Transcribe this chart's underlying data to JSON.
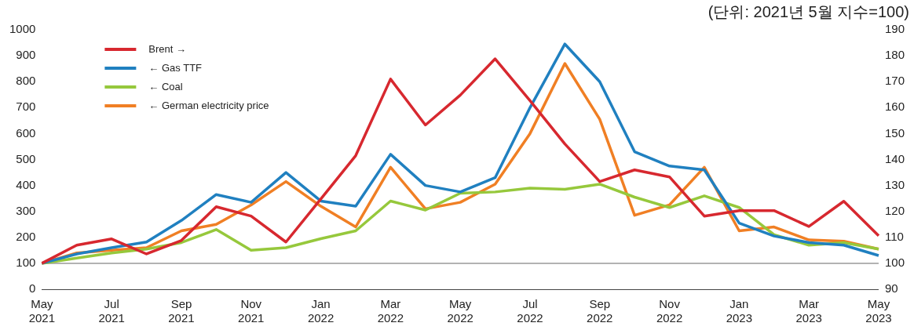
{
  "chart_data": {
    "type": "line",
    "annotations": [
      "(단위: 2021년 5월 지수=100)"
    ],
    "categories": [
      "May 2021",
      null,
      "Jul 2021",
      null,
      "Sep 2021",
      null,
      "Nov 2021",
      null,
      "Jan 2022",
      null,
      "Mar 2022",
      null,
      "May 2022",
      null,
      "Jul 2022",
      null,
      "Sep 2022",
      null,
      "Nov 2022",
      null,
      "Jan 2023",
      null,
      "Mar 2023",
      null,
      "May 2023"
    ],
    "series": [
      {
        "name": "Brent →",
        "color": "#d7282f",
        "axis": "y2",
        "values": [
          100,
          107,
          109.4,
          103.6,
          108.8,
          121.8,
          118.2,
          108.2,
          124.8,
          141.5,
          171,
          153.3,
          164.8,
          178.8,
          162.7,
          146,
          131.5,
          136,
          133.3,
          118.2,
          120.3,
          120.3,
          114.2,
          123.9,
          110.6
        ]
      },
      {
        "name": "← Gas TTF",
        "color": "#2080c0",
        "values": [
          100,
          136,
          160,
          182,
          265,
          365,
          335,
          450,
          340,
          320,
          520,
          400,
          375,
          430,
          700,
          945,
          800,
          530,
          475,
          460,
          255,
          205,
          180,
          170,
          130
        ]
      },
      {
        "name": "← Coal",
        "color": "#96c83c",
        "values": [
          100,
          120,
          140,
          155,
          180,
          230,
          150,
          160,
          195,
          225,
          340,
          305,
          370,
          375,
          390,
          385,
          405,
          355,
          315,
          360,
          315,
          210,
          170,
          180,
          155
        ]
      },
      {
        "name": "← German electricity price",
        "color": "#f07f24",
        "values": [
          100,
          140,
          150,
          160,
          225,
          250,
          325,
          415,
          320,
          240,
          470,
          310,
          335,
          405,
          600,
          870,
          655,
          285,
          325,
          470,
          225,
          240,
          190,
          185,
          155
        ]
      }
    ],
    "ylim": [
      0,
      1000
    ],
    "yticks": [
      0,
      100,
      200,
      300,
      400,
      500,
      600,
      700,
      800,
      900,
      1000
    ],
    "y2lim": [
      90,
      190
    ],
    "y2ticks": [
      90,
      100,
      110,
      120,
      130,
      140,
      150,
      160,
      170,
      180,
      190
    ],
    "ref_lines": [
      {
        "axis": "y",
        "value": 100,
        "color": "#999999"
      }
    ],
    "grid": false,
    "legend": "top left",
    "marker": "none",
    "line_style": "solid"
  }
}
